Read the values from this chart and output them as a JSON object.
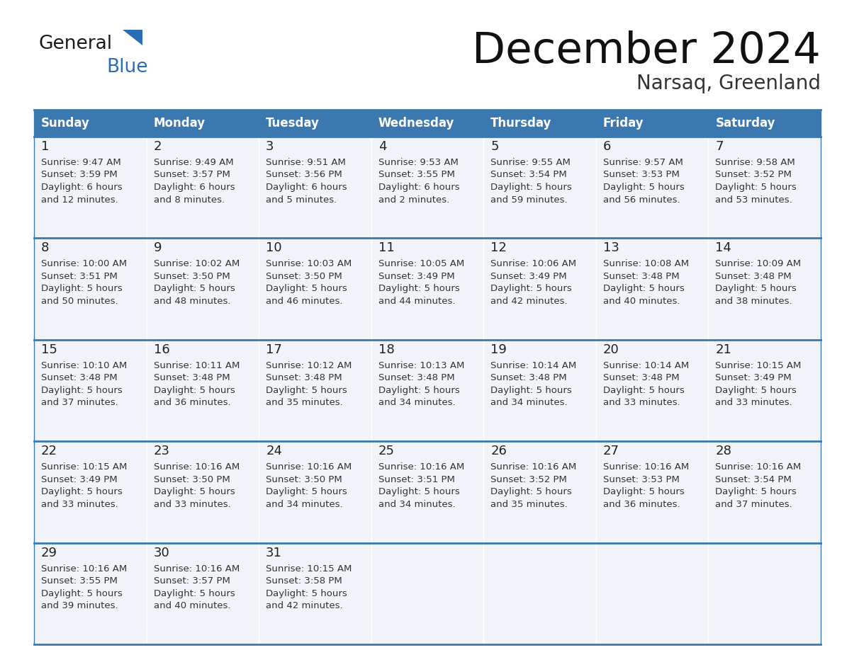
{
  "title": "December 2024",
  "subtitle": "Narsaq, Greenland",
  "days_of_week": [
    "Sunday",
    "Monday",
    "Tuesday",
    "Wednesday",
    "Thursday",
    "Friday",
    "Saturday"
  ],
  "header_bg_color": "#3b78b0",
  "header_text_color": "#ffffff",
  "cell_bg_color": "#f0f4f8",
  "border_color": "#3b78b0",
  "day_number_color": "#222222",
  "cell_text_color": "#333333",
  "title_color": "#111111",
  "subtitle_color": "#333333",
  "logo_general_color": "#1a1a1a",
  "logo_blue_color": "#2a6db5",
  "logo_triangle_color": "#2a6db5",
  "weeks": [
    [
      {
        "day": 1,
        "sunrise": "9:47 AM",
        "sunset": "3:59 PM",
        "daylight_h": "6 hours",
        "daylight_m": "12 minutes."
      },
      {
        "day": 2,
        "sunrise": "9:49 AM",
        "sunset": "3:57 PM",
        "daylight_h": "6 hours",
        "daylight_m": "8 minutes."
      },
      {
        "day": 3,
        "sunrise": "9:51 AM",
        "sunset": "3:56 PM",
        "daylight_h": "6 hours",
        "daylight_m": "5 minutes."
      },
      {
        "day": 4,
        "sunrise": "9:53 AM",
        "sunset": "3:55 PM",
        "daylight_h": "6 hours",
        "daylight_m": "2 minutes."
      },
      {
        "day": 5,
        "sunrise": "9:55 AM",
        "sunset": "3:54 PM",
        "daylight_h": "5 hours",
        "daylight_m": "59 minutes."
      },
      {
        "day": 6,
        "sunrise": "9:57 AM",
        "sunset": "3:53 PM",
        "daylight_h": "5 hours",
        "daylight_m": "56 minutes."
      },
      {
        "day": 7,
        "sunrise": "9:58 AM",
        "sunset": "3:52 PM",
        "daylight_h": "5 hours",
        "daylight_m": "53 minutes."
      }
    ],
    [
      {
        "day": 8,
        "sunrise": "10:00 AM",
        "sunset": "3:51 PM",
        "daylight_h": "5 hours",
        "daylight_m": "50 minutes."
      },
      {
        "day": 9,
        "sunrise": "10:02 AM",
        "sunset": "3:50 PM",
        "daylight_h": "5 hours",
        "daylight_m": "48 minutes."
      },
      {
        "day": 10,
        "sunrise": "10:03 AM",
        "sunset": "3:50 PM",
        "daylight_h": "5 hours",
        "daylight_m": "46 minutes."
      },
      {
        "day": 11,
        "sunrise": "10:05 AM",
        "sunset": "3:49 PM",
        "daylight_h": "5 hours",
        "daylight_m": "44 minutes."
      },
      {
        "day": 12,
        "sunrise": "10:06 AM",
        "sunset": "3:49 PM",
        "daylight_h": "5 hours",
        "daylight_m": "42 minutes."
      },
      {
        "day": 13,
        "sunrise": "10:08 AM",
        "sunset": "3:48 PM",
        "daylight_h": "5 hours",
        "daylight_m": "40 minutes."
      },
      {
        "day": 14,
        "sunrise": "10:09 AM",
        "sunset": "3:48 PM",
        "daylight_h": "5 hours",
        "daylight_m": "38 minutes."
      }
    ],
    [
      {
        "day": 15,
        "sunrise": "10:10 AM",
        "sunset": "3:48 PM",
        "daylight_h": "5 hours",
        "daylight_m": "37 minutes."
      },
      {
        "day": 16,
        "sunrise": "10:11 AM",
        "sunset": "3:48 PM",
        "daylight_h": "5 hours",
        "daylight_m": "36 minutes."
      },
      {
        "day": 17,
        "sunrise": "10:12 AM",
        "sunset": "3:48 PM",
        "daylight_h": "5 hours",
        "daylight_m": "35 minutes."
      },
      {
        "day": 18,
        "sunrise": "10:13 AM",
        "sunset": "3:48 PM",
        "daylight_h": "5 hours",
        "daylight_m": "34 minutes."
      },
      {
        "day": 19,
        "sunrise": "10:14 AM",
        "sunset": "3:48 PM",
        "daylight_h": "5 hours",
        "daylight_m": "34 minutes."
      },
      {
        "day": 20,
        "sunrise": "10:14 AM",
        "sunset": "3:48 PM",
        "daylight_h": "5 hours",
        "daylight_m": "33 minutes."
      },
      {
        "day": 21,
        "sunrise": "10:15 AM",
        "sunset": "3:49 PM",
        "daylight_h": "5 hours",
        "daylight_m": "33 minutes."
      }
    ],
    [
      {
        "day": 22,
        "sunrise": "10:15 AM",
        "sunset": "3:49 PM",
        "daylight_h": "5 hours",
        "daylight_m": "33 minutes."
      },
      {
        "day": 23,
        "sunrise": "10:16 AM",
        "sunset": "3:50 PM",
        "daylight_h": "5 hours",
        "daylight_m": "33 minutes."
      },
      {
        "day": 24,
        "sunrise": "10:16 AM",
        "sunset": "3:50 PM",
        "daylight_h": "5 hours",
        "daylight_m": "34 minutes."
      },
      {
        "day": 25,
        "sunrise": "10:16 AM",
        "sunset": "3:51 PM",
        "daylight_h": "5 hours",
        "daylight_m": "34 minutes."
      },
      {
        "day": 26,
        "sunrise": "10:16 AM",
        "sunset": "3:52 PM",
        "daylight_h": "5 hours",
        "daylight_m": "35 minutes."
      },
      {
        "day": 27,
        "sunrise": "10:16 AM",
        "sunset": "3:53 PM",
        "daylight_h": "5 hours",
        "daylight_m": "36 minutes."
      },
      {
        "day": 28,
        "sunrise": "10:16 AM",
        "sunset": "3:54 PM",
        "daylight_h": "5 hours",
        "daylight_m": "37 minutes."
      }
    ],
    [
      {
        "day": 29,
        "sunrise": "10:16 AM",
        "sunset": "3:55 PM",
        "daylight_h": "5 hours",
        "daylight_m": "39 minutes."
      },
      {
        "day": 30,
        "sunrise": "10:16 AM",
        "sunset": "3:57 PM",
        "daylight_h": "5 hours",
        "daylight_m": "40 minutes."
      },
      {
        "day": 31,
        "sunrise": "10:15 AM",
        "sunset": "3:58 PM",
        "daylight_h": "5 hours",
        "daylight_m": "42 minutes."
      },
      null,
      null,
      null,
      null
    ]
  ]
}
